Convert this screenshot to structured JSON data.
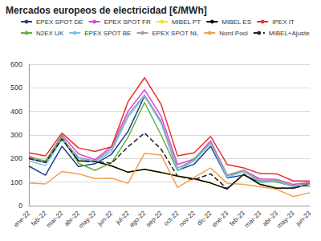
{
  "chart_data": {
    "type": "line",
    "title": "Mercados europeos de electricidad [€/MWh]",
    "categories": [
      "ene-22",
      "feb-22",
      "mar-22",
      "abr-22",
      "may-22",
      "jun-22",
      "jul-22",
      "ago-22",
      "sep-22",
      "oct-22",
      "nov-22",
      "dic-22",
      "ene-23",
      "feb-23",
      "mar-23",
      "abr-23",
      "may-23",
      "jun-23"
    ],
    "series": [
      {
        "name": "EPEX SPOT DE",
        "color": "#1f3f8f",
        "line_style": "solid",
        "values": [
          168,
          129,
          252,
          166,
          178,
          218,
          315,
          465,
          355,
          150,
          176,
          252,
          118,
          130,
          100,
          102,
          82,
          95
        ]
      },
      {
        "name": "EPEX SPOT FR",
        "color": "#e040e0",
        "line_style": "solid",
        "values": [
          211,
          184,
          300,
          220,
          195,
          250,
          400,
          492,
          380,
          175,
          198,
          275,
          130,
          150,
          113,
          112,
          90,
          98
        ]
      },
      {
        "name": "MIBEL PT",
        "color": "#f2e600",
        "line_style": "solid",
        "values": [
          201,
          184,
          284,
          191,
          188,
          170,
          142,
          154,
          142,
          126,
          114,
          97,
          72,
          134,
          90,
          74,
          75,
          92
        ]
      },
      {
        "name": "MIBEL ES",
        "color": "#000000",
        "line_style": "solid",
        "values": [
          200,
          183,
          283,
          190,
          187,
          169,
          142,
          154,
          141,
          125,
          114,
          96,
          71,
          133,
          90,
          74,
          74,
          92
        ]
      },
      {
        "name": "IPEX IT",
        "color": "#e8302a",
        "line_style": "solid",
        "values": [
          224,
          211,
          308,
          245,
          230,
          250,
          441,
          543,
          430,
          211,
          224,
          294,
          175,
          160,
          136,
          135,
          105,
          105
        ]
      },
      {
        "name": "N2EX UK",
        "color": "#5fb03c",
        "line_style": "solid",
        "values": [
          205,
          190,
          295,
          180,
          150,
          182,
          290,
          438,
          300,
          148,
          200,
          265,
          128,
          145,
          107,
          100,
          85,
          82
        ]
      },
      {
        "name": "EPEX SPOT BE",
        "color": "#6ec6f0",
        "line_style": "solid",
        "values": [
          190,
          170,
          280,
          200,
          185,
          230,
          375,
          465,
          350,
          150,
          190,
          264,
          120,
          145,
          100,
          105,
          80,
          90
        ]
      },
      {
        "name": "EPEX SPOT NL",
        "color": "#a0a0a0",
        "line_style": "solid",
        "values": [
          200,
          185,
          285,
          205,
          190,
          240,
          385,
          470,
          360,
          160,
          195,
          270,
          130,
          150,
          105,
          108,
          85,
          92
        ]
      },
      {
        "name": "Nord Pool",
        "color": "#f0a050",
        "line_style": "solid",
        "values": [
          96,
          92,
          145,
          135,
          115,
          117,
          95,
          222,
          215,
          77,
          120,
          160,
          95,
          90,
          80,
          70,
          38,
          55
        ]
      },
      {
        "name": "MIBEL+Ajuste",
        "color": "#222222",
        "line_style": "dashed",
        "values": [
          200,
          183,
          283,
          190,
          187,
          180,
          250,
          308,
          240,
          125,
          110,
          135,
          72,
          133,
          90,
          74,
          74,
          92
        ]
      }
    ],
    "ylim": [
      0,
      600
    ],
    "yticks": [
      0,
      100,
      200,
      300,
      400,
      500,
      600
    ],
    "grid": true,
    "legend": "top"
  }
}
